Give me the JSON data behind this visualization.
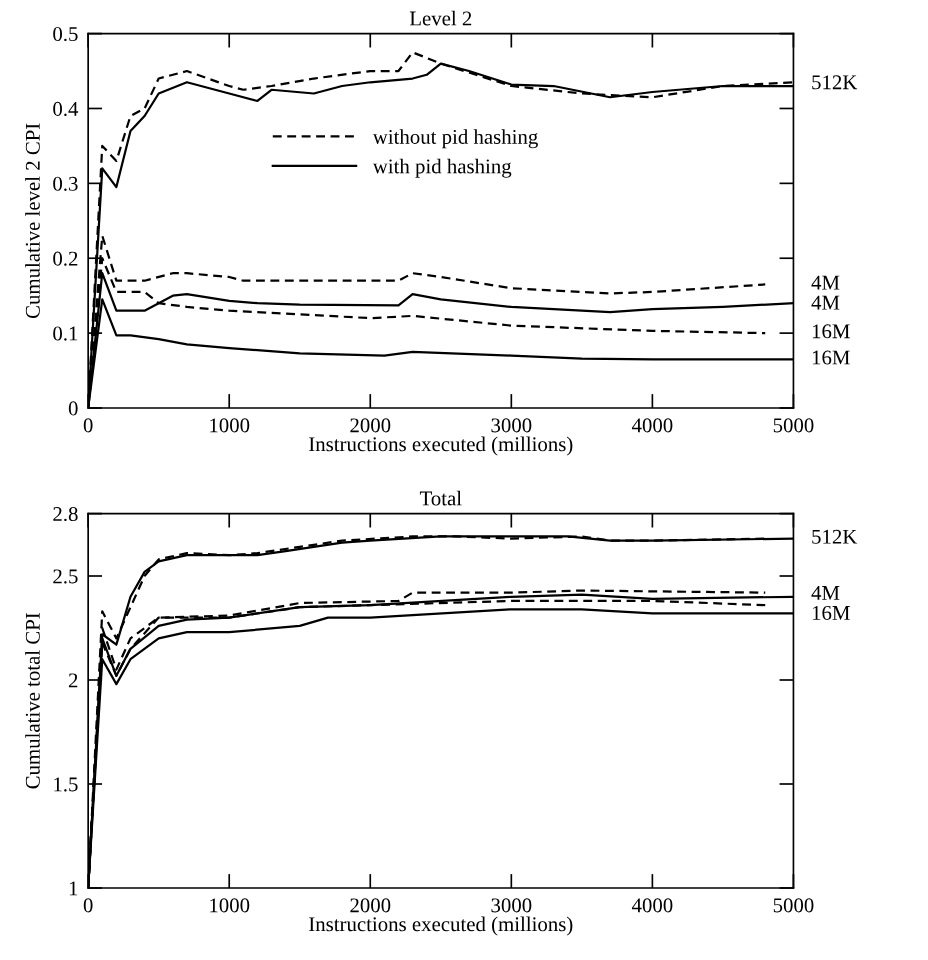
{
  "chart_data": [
    {
      "type": "line",
      "title": "Level 2",
      "xlabel": "Instructions executed (millions)",
      "ylabel": "Cumulative level 2 CPI",
      "xlim": [
        0,
        5000
      ],
      "xticks": [
        0,
        1000,
        2000,
        3000,
        4000,
        5000
      ],
      "ylim": [
        0,
        0.5
      ],
      "yticks": [
        0,
        0.1,
        0.2,
        0.3,
        0.4,
        0.5
      ],
      "grid": false,
      "legend": "center",
      "marker": "none",
      "series": [
        {
          "name": "without pid hashing",
          "color": "#000000",
          "line_style": "dashed",
          "x": [
            0,
            100,
            200,
            300,
            400,
            500,
            700,
            1000,
            1100,
            1300,
            1600,
            2000,
            2200,
            2300,
            2500,
            3000,
            3500,
            4000,
            4500,
            5000
          ],
          "values": [
            0,
            0.35,
            0.33,
            0.39,
            0.4,
            0.44,
            0.45,
            0.43,
            0.425,
            0.43,
            0.44,
            0.45,
            0.45,
            0.475,
            0.46,
            0.43,
            0.42,
            0.415,
            0.43,
            0.435
          ]
        },
        {
          "name": "with pid hashing",
          "color": "#000000",
          "line_style": "solid",
          "x": [
            0,
            100,
            200,
            300,
            400,
            500,
            700,
            1000,
            1200,
            1300,
            1600,
            1800,
            2000,
            2300,
            2400,
            2500,
            2700,
            3000,
            3300,
            3700,
            4000,
            4500,
            5000
          ],
          "values": [
            0,
            0.32,
            0.295,
            0.37,
            0.39,
            0.42,
            0.435,
            0.42,
            0.41,
            0.425,
            0.42,
            0.43,
            0.435,
            0.44,
            0.445,
            0.46,
            0.45,
            0.432,
            0.43,
            0.415,
            0.422,
            0.43,
            0.43
          ]
        },
        {
          "color": "#000000",
          "line_style": "dashed",
          "x": [
            0,
            100,
            200,
            400,
            600,
            700,
            1000,
            1100,
            2200,
            2300,
            2500,
            3000,
            3700,
            4000,
            4800
          ],
          "values": [
            0,
            0.23,
            0.17,
            0.17,
            0.18,
            0.18,
            0.175,
            0.17,
            0.17,
            0.18,
            0.175,
            0.16,
            0.153,
            0.155,
            0.165
          ]
        },
        {
          "color": "#000000",
          "line_style": "solid",
          "x": [
            0,
            100,
            200,
            400,
            500,
            600,
            700,
            1000,
            1200,
            1500,
            2200,
            2300,
            2500,
            3000,
            3700,
            4000,
            4500,
            5000
          ],
          "values": [
            0,
            0.18,
            0.13,
            0.13,
            0.14,
            0.15,
            0.152,
            0.143,
            0.14,
            0.138,
            0.137,
            0.152,
            0.145,
            0.135,
            0.128,
            0.132,
            0.135,
            0.14
          ]
        },
        {
          "color": "#000000",
          "line_style": "dashed",
          "x": [
            0,
            100,
            200,
            400,
            500,
            700,
            1000,
            2000,
            2300,
            3000,
            4000,
            4800
          ],
          "values": [
            0,
            0.2,
            0.155,
            0.155,
            0.14,
            0.135,
            0.13,
            0.12,
            0.123,
            0.11,
            0.103,
            0.1
          ]
        },
        {
          "color": "#000000",
          "line_style": "solid",
          "x": [
            0,
            100,
            200,
            300,
            500,
            700,
            1000,
            1500,
            2100,
            2300,
            3000,
            3500,
            4000,
            5000
          ],
          "values": [
            0,
            0.145,
            0.097,
            0.097,
            0.092,
            0.085,
            0.08,
            0.073,
            0.07,
            0.075,
            0.07,
            0.066,
            0.065,
            0.065
          ]
        }
      ],
      "annotations": [
        "512K",
        "4M",
        "4M",
        "16M",
        "16M"
      ]
    },
    {
      "type": "line",
      "title": "Total",
      "xlabel": "Instructions executed (millions)",
      "ylabel": "Cumulative total CPI",
      "xlim": [
        0,
        5000
      ],
      "xticks": [
        0,
        1000,
        2000,
        3000,
        4000,
        5000
      ],
      "ylim": [
        1,
        2.8
      ],
      "yticks": [
        1,
        1.5,
        2,
        2.5,
        2.8
      ],
      "grid": false,
      "marker": "none",
      "series": [
        {
          "color": "#000000",
          "line_style": "dashed",
          "x": [
            0,
            100,
            200,
            400,
            500,
            700,
            1000,
            1200,
            1500,
            1800,
            2300,
            2600,
            3000,
            3500,
            3700,
            4000,
            4800
          ],
          "values": [
            1,
            2.33,
            2.2,
            2.5,
            2.58,
            2.61,
            2.6,
            2.61,
            2.64,
            2.67,
            2.69,
            2.69,
            2.68,
            2.69,
            2.67,
            2.67,
            2.68
          ]
        },
        {
          "color": "#000000",
          "line_style": "solid",
          "x": [
            0,
            100,
            200,
            300,
            400,
            500,
            700,
            1000,
            1200,
            1400,
            1800,
            2000,
            2500,
            3000,
            3400,
            3700,
            4000,
            5000
          ],
          "values": [
            1,
            2.22,
            2.17,
            2.4,
            2.52,
            2.57,
            2.6,
            2.6,
            2.6,
            2.62,
            2.66,
            2.67,
            2.69,
            2.69,
            2.69,
            2.67,
            2.67,
            2.68
          ]
        },
        {
          "color": "#000000",
          "line_style": "dashed",
          "x": [
            0,
            100,
            200,
            300,
            500,
            1000,
            1500,
            2200,
            2300,
            3000,
            3500,
            4800
          ],
          "values": [
            1,
            2.25,
            2.05,
            2.2,
            2.3,
            2.31,
            2.37,
            2.38,
            2.42,
            2.42,
            2.43,
            2.42
          ]
        },
        {
          "color": "#000000",
          "line_style": "solid",
          "x": [
            0,
            100,
            200,
            300,
            500,
            700,
            1000,
            1500,
            2000,
            3000,
            3500,
            4000,
            5000
          ],
          "values": [
            1,
            2.2,
            2.02,
            2.15,
            2.26,
            2.29,
            2.3,
            2.35,
            2.36,
            2.4,
            2.41,
            2.39,
            2.4
          ]
        },
        {
          "color": "#000000",
          "line_style": "dashed",
          "x": [
            0,
            100,
            200,
            300,
            500,
            1000,
            1500,
            2000,
            3000,
            4000,
            4800
          ],
          "values": [
            1,
            2.18,
            2.02,
            2.15,
            2.3,
            2.3,
            2.35,
            2.36,
            2.38,
            2.38,
            2.36
          ]
        },
        {
          "color": "#000000",
          "line_style": "solid",
          "x": [
            0,
            100,
            200,
            300,
            500,
            700,
            1000,
            1500,
            1700,
            2000,
            3000,
            3500,
            4000,
            5000
          ],
          "values": [
            1,
            2.1,
            1.98,
            2.1,
            2.2,
            2.23,
            2.23,
            2.26,
            2.3,
            2.3,
            2.34,
            2.34,
            2.32,
            2.32
          ]
        }
      ],
      "annotations": [
        "512K",
        "4M",
        "16M"
      ]
    }
  ]
}
